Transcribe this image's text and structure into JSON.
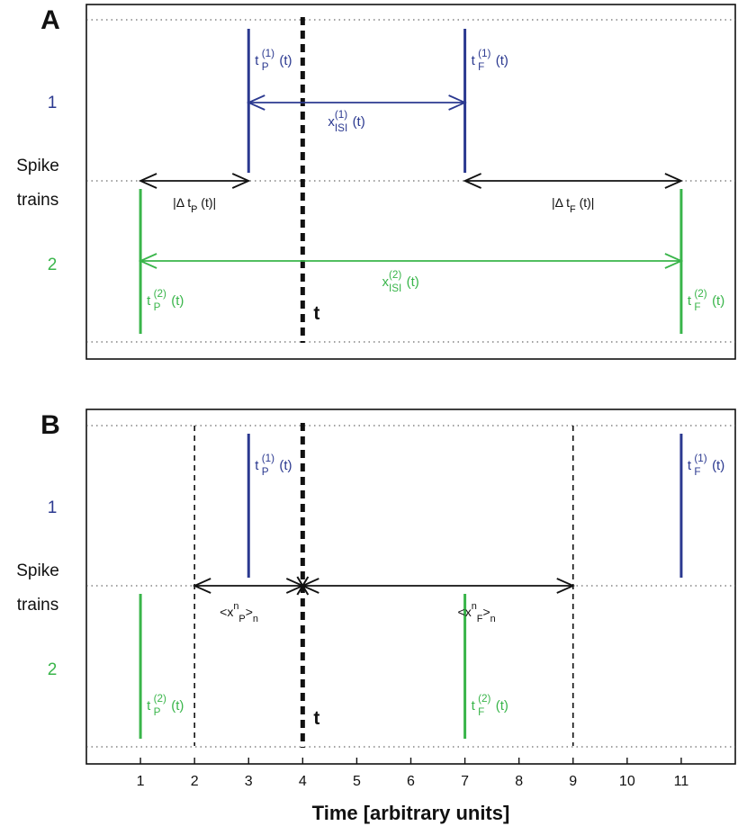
{
  "colors": {
    "train1": "#2B3990",
    "train2": "#39B54A",
    "black": "#111111"
  },
  "axis": {
    "x_label": "Time  [arbitrary units]",
    "x_range": [
      0,
      12
    ],
    "ticks": [
      "1",
      "2",
      "3",
      "4",
      "5",
      "6",
      "7",
      "8",
      "9",
      "10",
      "11"
    ]
  },
  "current_time": {
    "value": 4,
    "label": "t"
  },
  "row_labels": {
    "train1": "1",
    "train2": "2",
    "spike": "Spike",
    "trains": "trains"
  },
  "panels": [
    {
      "letter": "A",
      "spikes_train1": [
        3,
        7
      ],
      "spikes_train2": [
        1,
        11
      ],
      "spike_labels": [
        {
          "train": 1,
          "at": 3,
          "base": "t",
          "sup": "(1)",
          "sub": "P",
          "tail": " (t)"
        },
        {
          "train": 1,
          "at": 7,
          "base": "t",
          "sup": "(1)",
          "sub": "F",
          "tail": " (t)"
        },
        {
          "train": 2,
          "at": 1,
          "base": "t",
          "sup": "(2)",
          "sub": "P",
          "tail": " (t)"
        },
        {
          "train": 2,
          "at": 11,
          "base": "t",
          "sup": "(2)",
          "sub": "F",
          "tail": " (t)"
        }
      ],
      "intervals": [
        {
          "name": "isi-1",
          "from": 3,
          "to": 7,
          "color": "train1",
          "base": "x",
          "sup": "(1)",
          "sub": "ISI",
          "tail": " (t)"
        },
        {
          "name": "delta-p",
          "from": 1,
          "to": 3,
          "color": "black",
          "pre": "|Δ t",
          "sub": "P",
          "tail": " (t)|"
        },
        {
          "name": "delta-f",
          "from": 7,
          "to": 11,
          "color": "black",
          "pre": "|Δ t",
          "sub": "F",
          "tail": " (t)|"
        },
        {
          "name": "isi-2",
          "from": 1,
          "to": 11,
          "color": "train2",
          "base": "x",
          "sup": "(2)",
          "sub": "ISI",
          "tail": " (t)"
        }
      ]
    },
    {
      "letter": "B",
      "spikes_train1": [
        3,
        11
      ],
      "spikes_train2": [
        1,
        7
      ],
      "window": [
        2,
        9
      ],
      "spike_labels": [
        {
          "train": 1,
          "at": 3,
          "base": "t",
          "sup": "(1)",
          "sub": "P",
          "tail": " (t)"
        },
        {
          "train": 1,
          "at": 11,
          "base": "t",
          "sup": "(1)",
          "sub": "F",
          "tail": " (t)"
        },
        {
          "train": 2,
          "at": 1,
          "base": "t",
          "sup": "(2)",
          "sub": "P",
          "tail": " (t)"
        },
        {
          "train": 2,
          "at": 7,
          "base": "t",
          "sup": "(2)",
          "sub": "F",
          "tail": " (t)"
        }
      ],
      "intervals": [
        {
          "name": "mean-xp",
          "from": 2,
          "to": 4,
          "color": "black",
          "pre": "<x",
          "sup": "n",
          "sub": "P",
          "post": ">",
          "sub2": "n"
        },
        {
          "name": "mean-xf",
          "from": 4,
          "to": 9,
          "color": "black",
          "pre": "<x",
          "sup": "n",
          "sub": "F",
          "post": ">",
          "sub2": "n"
        }
      ]
    }
  ]
}
